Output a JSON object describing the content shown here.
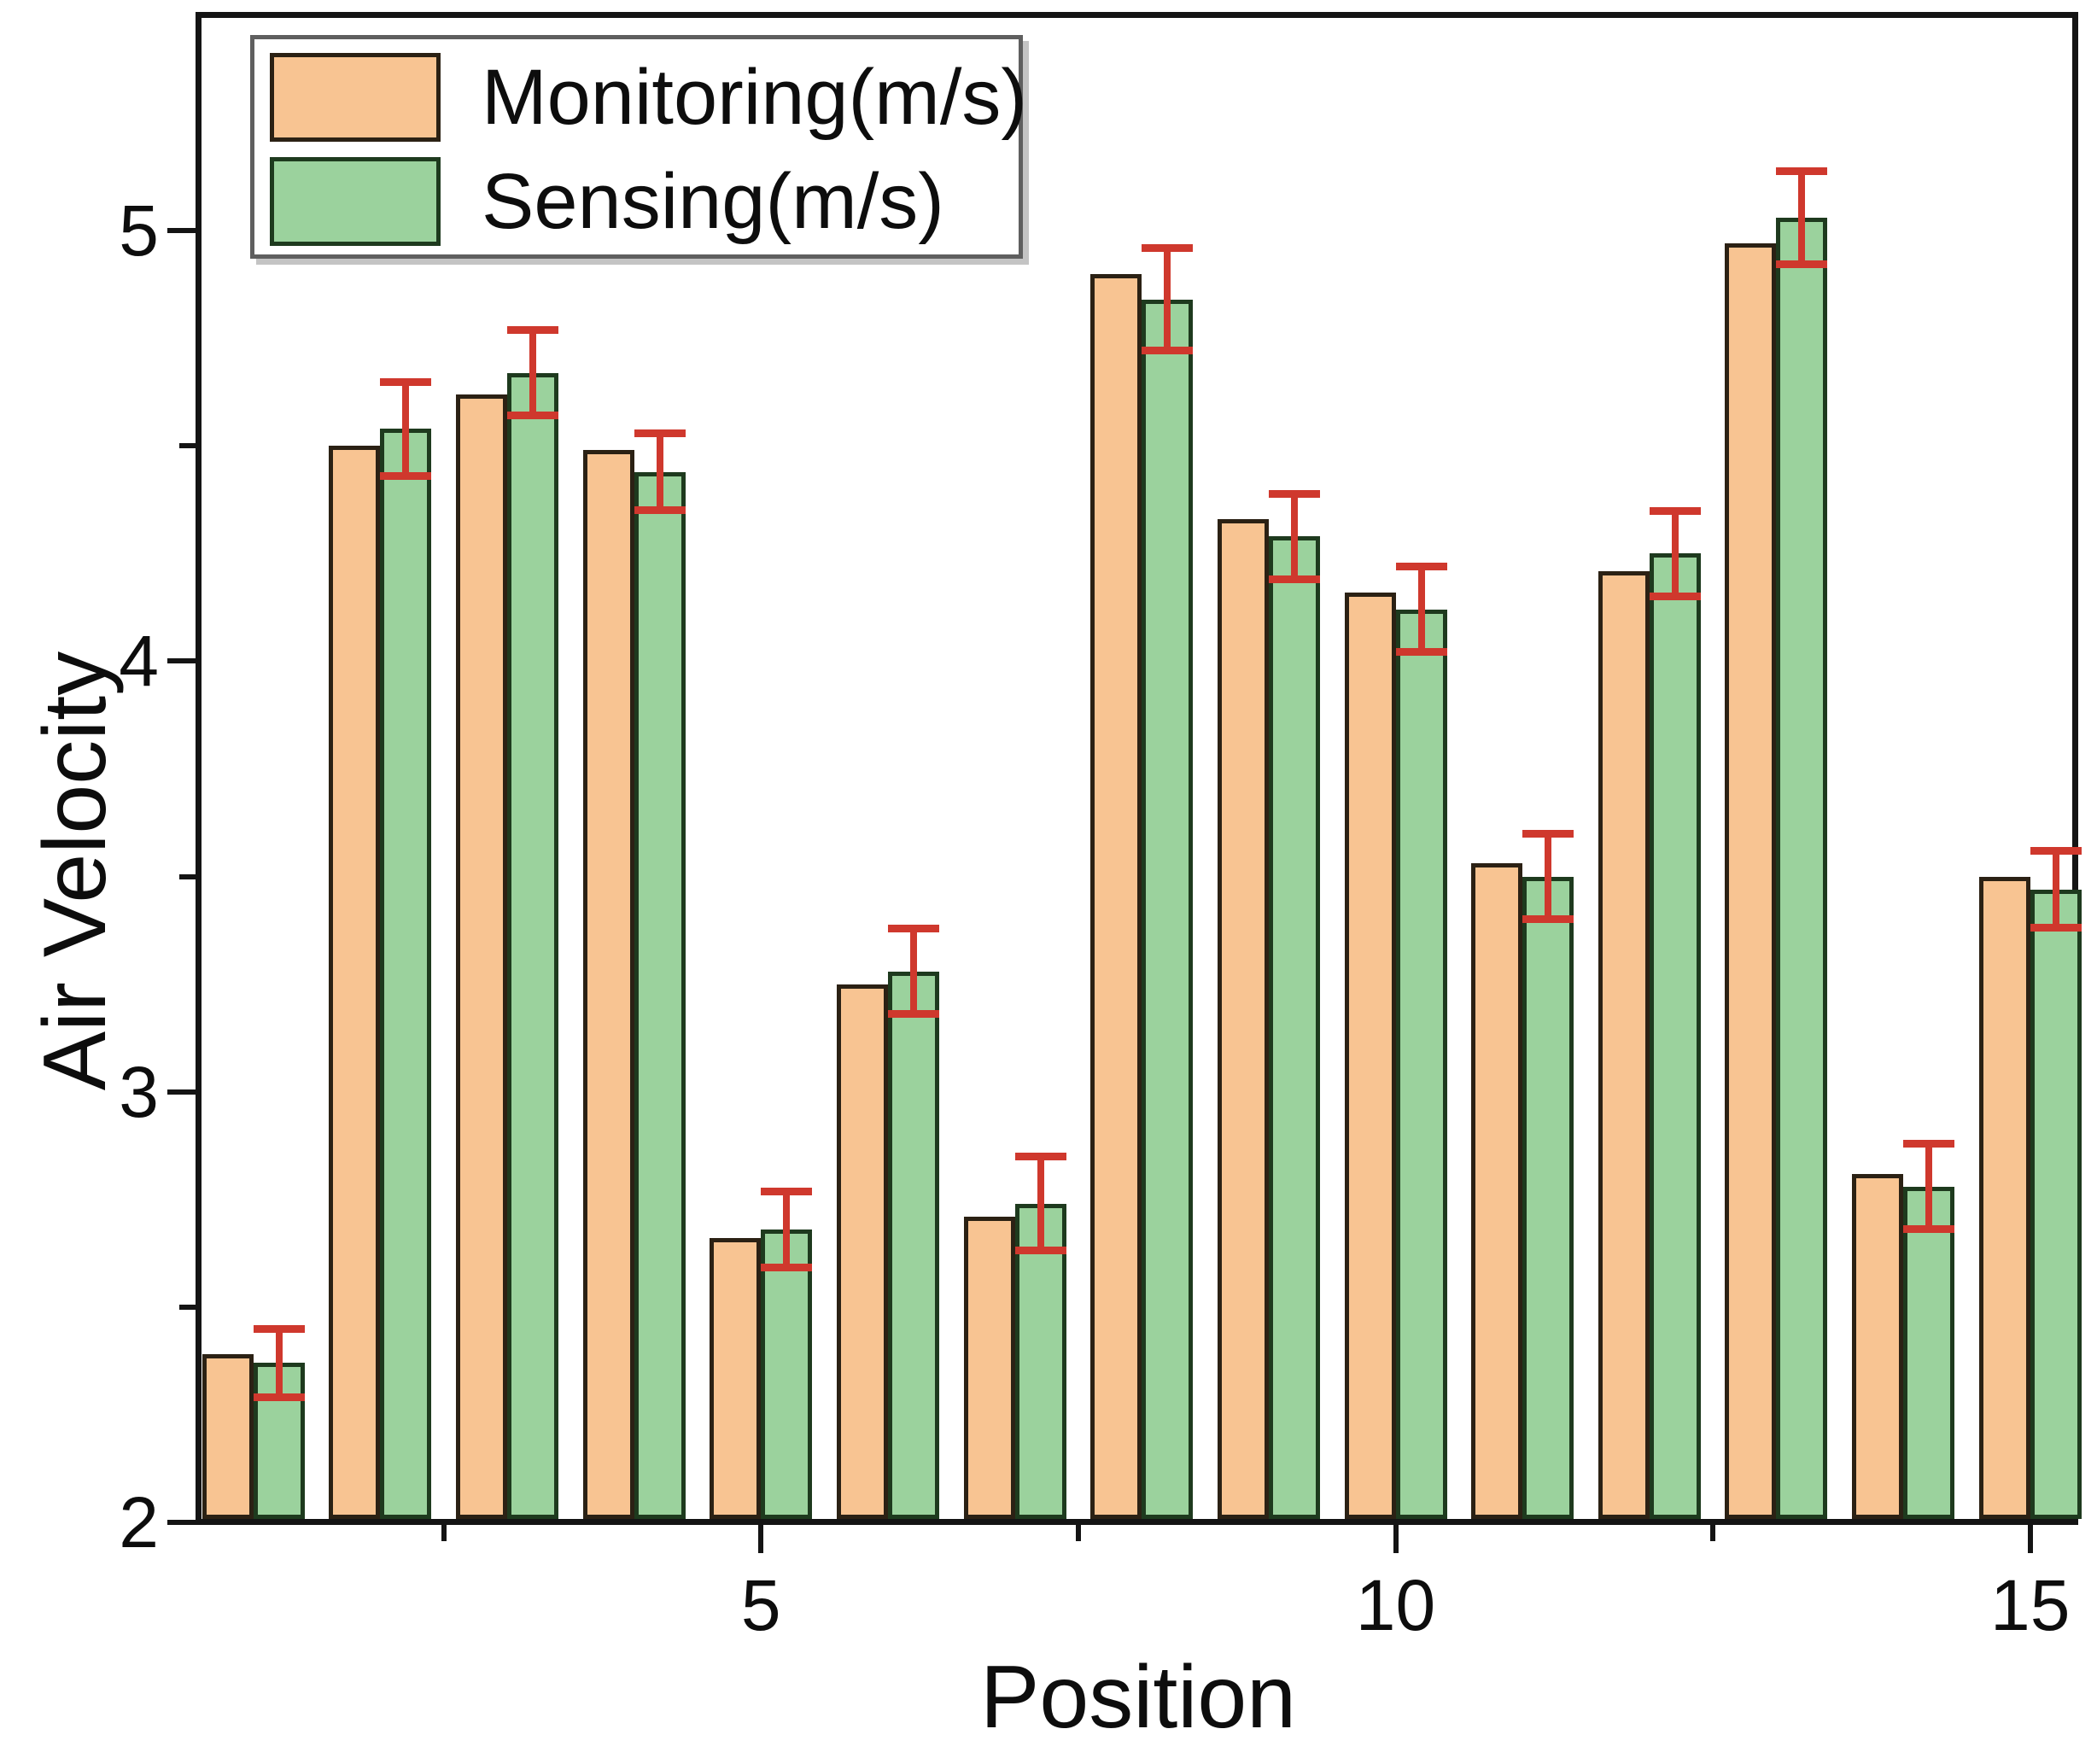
{
  "chart_data": {
    "type": "bar",
    "title": "",
    "xlabel": "Position",
    "ylabel": "Air Velocity",
    "categories": [
      1,
      2,
      3,
      4,
      5,
      6,
      7,
      8,
      9,
      10,
      11,
      12,
      13,
      14,
      15
    ],
    "series": [
      {
        "name": "Monitoring(m/s)",
        "color": "#f8c492",
        "edge_color": "#2b2114",
        "values": [
          2.39,
          4.5,
          4.62,
          4.49,
          2.66,
          3.25,
          2.71,
          4.9,
          4.33,
          4.16,
          3.53,
          4.21,
          4.97,
          2.81,
          3.5
        ]
      },
      {
        "name": "Sensing(m/s)",
        "color": "#9bd29d",
        "edge_color": "#1e3a1e",
        "values": [
          2.37,
          4.54,
          4.67,
          4.44,
          2.68,
          3.28,
          2.74,
          4.84,
          4.29,
          4.12,
          3.5,
          4.25,
          5.03,
          2.78,
          3.47
        ],
        "errors": [
          0.08,
          0.11,
          0.1,
          0.09,
          0.09,
          0.1,
          0.11,
          0.12,
          0.1,
          0.1,
          0.1,
          0.1,
          0.11,
          0.1,
          0.09
        ]
      }
    ],
    "error_bar_color": "#cf382d",
    "axis_color": "#141414",
    "ylim": [
      2,
      5.5
    ],
    "xlim": [
      0.565,
      15.365
    ],
    "y_major_ticks": [
      {
        "v": 2,
        "label": "2"
      },
      {
        "v": 3,
        "label": "3"
      },
      {
        "v": 4,
        "label": "4"
      },
      {
        "v": 5,
        "label": "5"
      }
    ],
    "y_minor_ticks": [
      2.5,
      3.5,
      4.5
    ],
    "x_major_ticks": [
      {
        "v": 5,
        "label": "5"
      },
      {
        "v": 10,
        "label": "10"
      },
      {
        "v": 15,
        "label": "15"
      }
    ],
    "x_minor_ticks": [
      2.5,
      7.5,
      12.5
    ],
    "grid": false,
    "legend_position": "top-left"
  }
}
